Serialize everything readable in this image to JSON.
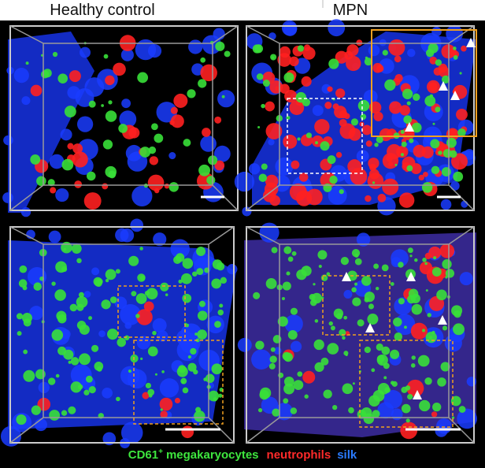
{
  "header": {
    "left_title": "Healthy control",
    "right_title": "MPN"
  },
  "legend": {
    "megakaryocytes": {
      "text": "CD61",
      "sup": "+",
      "rest": "megakaryocytes"
    },
    "neutrophils": "neutrophils",
    "silk": "silk"
  }
}
